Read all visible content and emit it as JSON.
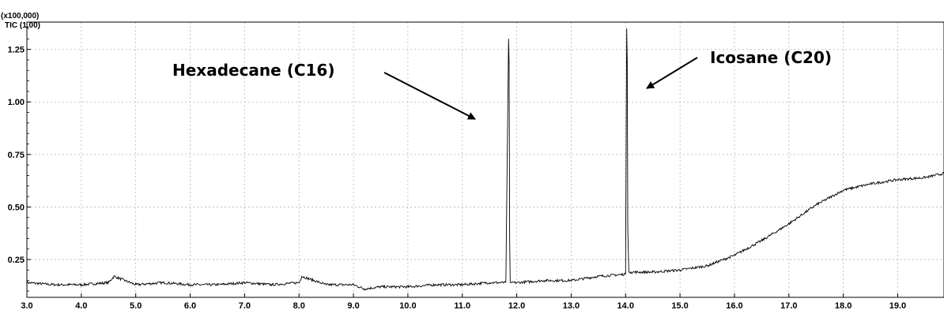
{
  "chart_data": {
    "type": "line",
    "scale_label": "(x100,000)",
    "trace_label": "TIC (1.00)",
    "xlim": [
      3.0,
      19.85
    ],
    "ylim": [
      0.07,
      1.38
    ],
    "grid": true,
    "x_ticks": [
      "3.0",
      "4.0",
      "5.0",
      "6.0",
      "7.0",
      "8.0",
      "9.0",
      "10.0",
      "11.0",
      "12.0",
      "13.0",
      "14.0",
      "15.0",
      "16.0",
      "17.0",
      "18.0",
      "19.0"
    ],
    "y_ticks": [
      "0.25",
      "0.50",
      "0.75",
      "1.00",
      "1.25"
    ],
    "series": [
      {
        "x": [
          3.0,
          3.5,
          4.0,
          4.5,
          4.6,
          5.0,
          5.5,
          6.0,
          6.5,
          7.0,
          7.5,
          8.0,
          8.05,
          8.5,
          9.0,
          9.2,
          9.5,
          10.0,
          10.5,
          11.0,
          11.5,
          11.8,
          11.85,
          11.86,
          11.87,
          11.88,
          11.9,
          12.0,
          12.5,
          13.0,
          13.5,
          14.0,
          14.02,
          14.03,
          14.04,
          14.06,
          14.1,
          14.5,
          15.0,
          15.5,
          16.0,
          16.5,
          17.0,
          17.5,
          18.0,
          18.5,
          19.0,
          19.5,
          19.85
        ],
        "y": [
          0.14,
          0.13,
          0.13,
          0.14,
          0.17,
          0.13,
          0.14,
          0.13,
          0.13,
          0.14,
          0.13,
          0.14,
          0.17,
          0.13,
          0.13,
          0.11,
          0.12,
          0.12,
          0.13,
          0.13,
          0.14,
          0.14,
          1.3,
          1.18,
          0.35,
          0.14,
          0.14,
          0.14,
          0.15,
          0.15,
          0.17,
          0.18,
          1.35,
          1.2,
          0.4,
          0.19,
          0.19,
          0.19,
          0.2,
          0.22,
          0.27,
          0.34,
          0.42,
          0.51,
          0.58,
          0.61,
          0.63,
          0.64,
          0.66
        ]
      }
    ],
    "annotations": [
      {
        "text": "Hexadecane (C16)",
        "x": 11.85
      },
      {
        "text": "Icosane (C20)",
        "x": 14.03
      }
    ]
  }
}
